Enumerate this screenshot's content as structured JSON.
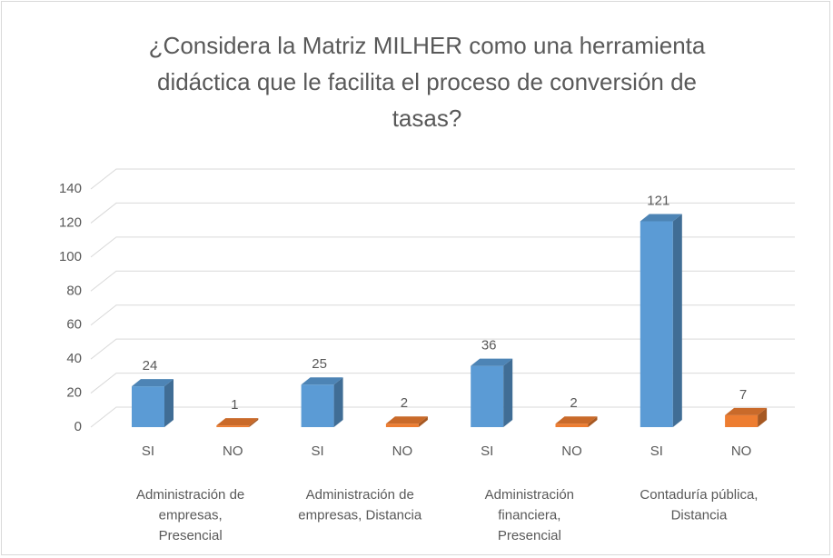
{
  "chart_data": {
    "type": "bar3d",
    "title": [
      "¿Considera la Matriz MILHER como una herramienta",
      "didáctica que le facilita el proceso de conversión de",
      "tasas?"
    ],
    "categories": [
      "SI",
      "NO",
      "SI",
      "NO",
      "SI",
      "NO",
      "SI",
      "NO"
    ],
    "groups": [
      [
        "Administración de",
        "empresas,",
        "Presencial"
      ],
      [
        "Administración de",
        "empresas, Distancia"
      ],
      [
        "Administración",
        "financiera,",
        "Presencial"
      ],
      [
        "Contaduría pública,",
        "Distancia"
      ]
    ],
    "values": [
      24,
      1,
      25,
      2,
      36,
      2,
      121,
      7
    ],
    "colors": [
      "#5b9bd5",
      "#ed7d31",
      "#5b9bd5",
      "#ed7d31",
      "#5b9bd5",
      "#ed7d31",
      "#5b9bd5",
      "#ed7d31"
    ],
    "ylim": [
      0,
      140
    ],
    "yticks": [
      0,
      20,
      40,
      60,
      80,
      100,
      120,
      140
    ],
    "grid": true
  }
}
